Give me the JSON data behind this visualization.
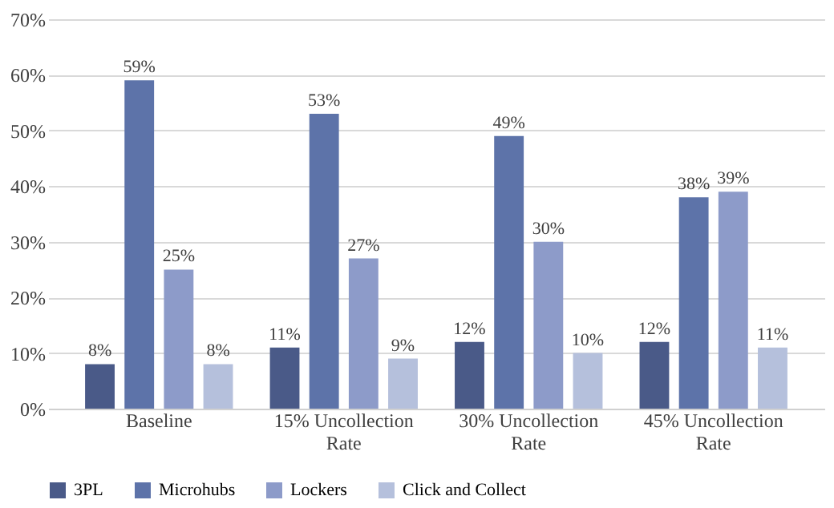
{
  "chart_data": {
    "type": "bar",
    "categories": [
      "Baseline",
      "15% Uncollection Rate",
      "30% Uncollection Rate",
      "45% Uncollection Rate"
    ],
    "series": [
      {
        "name": "3PL",
        "color": "#4a5a88",
        "values": [
          8,
          11,
          12,
          12
        ],
        "value_labels": [
          "8%",
          "11%",
          "12%",
          "12%"
        ]
      },
      {
        "name": "Microhubs",
        "color": "#5d73a9",
        "values": [
          59,
          53,
          49,
          38
        ],
        "value_labels": [
          "59%",
          "53%",
          "49%",
          "38%"
        ]
      },
      {
        "name": "Lockers",
        "color": "#8d9bc9",
        "values": [
          25,
          27,
          30,
          39
        ],
        "value_labels": [
          "25%",
          "27%",
          "30%",
          "39%"
        ]
      },
      {
        "name": "Click and Collect",
        "color": "#b5c0dc",
        "values": [
          8,
          9,
          10,
          11
        ],
        "value_labels": [
          "8%",
          "9%",
          "10%",
          "11%"
        ]
      }
    ],
    "ylim": [
      0,
      70
    ],
    "yticks": [
      {
        "value": 0,
        "label": "0%"
      },
      {
        "value": 10,
        "label": "10%"
      },
      {
        "value": 20,
        "label": "20%"
      },
      {
        "value": 30,
        "label": "30%"
      },
      {
        "value": 40,
        "label": "40%"
      },
      {
        "value": 50,
        "label": "50%"
      },
      {
        "value": 60,
        "label": "60%"
      },
      {
        "value": 70,
        "label": "70%"
      }
    ],
    "grid": "y",
    "legend": "bottom"
  }
}
